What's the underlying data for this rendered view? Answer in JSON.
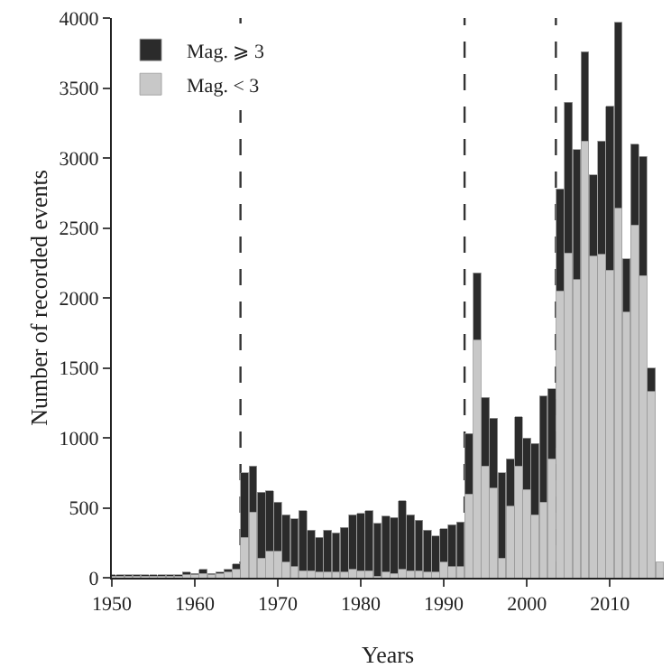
{
  "chart_data": {
    "type": "bar",
    "stacked": true,
    "xlabel": "Years",
    "ylabel": "Number of recorded events",
    "x": [
      1950,
      1951,
      1952,
      1953,
      1954,
      1955,
      1956,
      1957,
      1958,
      1959,
      1960,
      1961,
      1962,
      1963,
      1964,
      1965,
      1966,
      1967,
      1968,
      1969,
      1970,
      1971,
      1972,
      1973,
      1974,
      1975,
      1976,
      1977,
      1978,
      1979,
      1980,
      1981,
      1982,
      1983,
      1984,
      1985,
      1986,
      1987,
      1988,
      1989,
      1990,
      1991,
      1992,
      1993,
      1994,
      1995,
      1996,
      1997,
      1998,
      1999,
      2000,
      2001,
      2002,
      2003,
      2004,
      2005,
      2006,
      2007,
      2008,
      2009,
      2010,
      2011,
      2012,
      2013,
      2014,
      2015,
      2016
    ],
    "series": [
      {
        "name": "Mag. < 3",
        "color": "#c8c8c8",
        "values": [
          10,
          10,
          10,
          10,
          10,
          10,
          10,
          10,
          10,
          20,
          20,
          30,
          20,
          30,
          40,
          60,
          290,
          470,
          140,
          190,
          190,
          110,
          80,
          50,
          50,
          40,
          40,
          40,
          40,
          60,
          50,
          50,
          10,
          40,
          30,
          60,
          50,
          50,
          40,
          40,
          110,
          80,
          80,
          600,
          1700,
          800,
          640,
          140,
          510,
          800,
          630,
          450,
          540,
          850,
          2050,
          2320,
          2130,
          3120,
          2300,
          2310,
          2200,
          2640,
          1900,
          2520,
          2160,
          1330,
          110
        ]
      },
      {
        "name": "Mag. ⩾ 3",
        "color": "#2b2b2b",
        "values": [
          10,
          10,
          10,
          10,
          10,
          10,
          10,
          10,
          10,
          20,
          10,
          30,
          10,
          10,
          20,
          40,
          460,
          330,
          470,
          430,
          350,
          340,
          340,
          430,
          290,
          250,
          300,
          280,
          320,
          390,
          410,
          430,
          380,
          400,
          400,
          490,
          400,
          360,
          300,
          260,
          240,
          300,
          320,
          430,
          480,
          490,
          500,
          610,
          340,
          350,
          370,
          510,
          760,
          500,
          730,
          1080,
          930,
          640,
          580,
          810,
          1170,
          1330,
          380,
          580,
          850,
          170,
          null
        ]
      }
    ],
    "xlim": [
      1950,
      2016.5
    ],
    "xticks": [
      1950,
      1960,
      1970,
      1980,
      1990,
      2000,
      2010
    ],
    "ylim": [
      0,
      4000
    ],
    "yticks": [
      0,
      500,
      1000,
      1500,
      2000,
      2500,
      3000,
      3500,
      4000
    ],
    "ref_lines": [
      {
        "axis": "x",
        "value": 1965.5,
        "color": "#333333",
        "line_style": "dashed"
      },
      {
        "axis": "x",
        "value": 1992.5,
        "color": "#333333",
        "line_style": "dashed"
      },
      {
        "axis": "x",
        "value": 2003.5,
        "color": "#333333",
        "line_style": "dashed"
      }
    ],
    "legend": "top left",
    "grid": false
  }
}
